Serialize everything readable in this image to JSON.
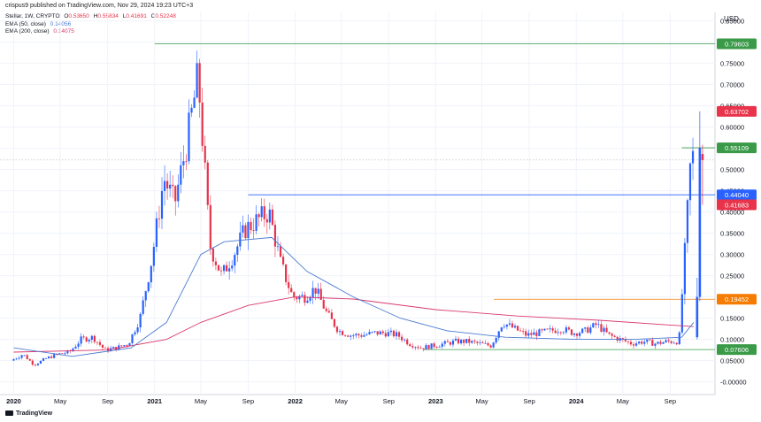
{
  "header": {
    "published": "crispus9 published on TradingView.com, Nov 29, 2024 19:23 UTC+3"
  },
  "legend": {
    "symbol": "Stellar, 1W, CRYPTO",
    "ohlc": [
      {
        "label": "O",
        "value": "0.53650"
      },
      {
        "label": "H",
        "value": "0.55834"
      },
      {
        "label": "L",
        "value": "0.41691"
      },
      {
        "label": "C",
        "value": "0.52248"
      }
    ],
    "ema50": {
      "label": "EMA (50, close)",
      "value": "0.14056",
      "color": "#4a7bd0"
    },
    "ema200": {
      "label": "EMA (200, close)",
      "value": "0.14075",
      "color": "#d9386e"
    }
  },
  "footer": {
    "logo_text": "TradingView"
  },
  "chart_data": {
    "type": "candlestick",
    "currency": "USD",
    "x_tick_labels": [
      "2020",
      "May",
      "Sep",
      "2021",
      "May",
      "Sep",
      "2022",
      "May",
      "Sep",
      "2023",
      "May",
      "Sep",
      "2024",
      "May",
      "Sep"
    ],
    "x_tick_dates": [
      "2020-01",
      "2020-05",
      "2020-09",
      "2021-01",
      "2021-05",
      "2021-09",
      "2022-01",
      "2022-05",
      "2022-09",
      "2023-01",
      "2023-05",
      "2023-09",
      "2024-01",
      "2024-05",
      "2024-09"
    ],
    "y_ticks": [
      -0.0,
      0.05,
      0.1,
      0.15,
      0.2,
      0.25,
      0.3,
      0.35,
      0.4,
      0.45,
      0.5,
      0.55,
      0.6,
      0.65,
      0.7,
      0.75,
      0.8,
      0.85
    ],
    "y_tick_labels": [
      "-0.00000",
      "0.05000",
      "0.10000",
      "0.15000",
      "0.20000",
      "0.25000",
      "0.30000",
      "0.35000",
      "0.40000",
      "0.45000",
      "0.50000",
      "0.55000",
      "0.60000",
      "0.65000",
      "0.70000",
      "0.75000",
      "0.80000",
      "0.85000"
    ],
    "ylim": [
      -0.03,
      0.87
    ],
    "up_color": "#2962ff",
    "down_color": "#e8334b",
    "price_tags": [
      {
        "value": 0.79603,
        "label": "0.79603",
        "color": "#3a9a48"
      },
      {
        "value": 0.63702,
        "label": "0.63702",
        "color": "#e8334b"
      },
      {
        "value": 0.55109,
        "label": "0.55109",
        "color": "#3a9a48"
      },
      {
        "value": 0.4404,
        "label": "0.44040",
        "color": "#2962ff"
      },
      {
        "value": 0.41683,
        "label": "0.41683",
        "color": "#e8334b"
      },
      {
        "value": 0.19452,
        "label": "0.19452",
        "color": "#f57c00"
      },
      {
        "value": 0.07606,
        "label": "0.07606",
        "color": "#3a9a48"
      }
    ],
    "horizontal_lines": [
      {
        "value": 0.79603,
        "from": "2021-01",
        "color": "#3a9a48"
      },
      {
        "value": 0.4404,
        "from": "2021-09",
        "color": "#2962ff"
      },
      {
        "value": 0.55109,
        "from": "2024-10",
        "color": "#3a9a48"
      },
      {
        "value": 0.19452,
        "from": "2023-06",
        "color": "#f57c00"
      },
      {
        "value": 0.07606,
        "from": "2022-12",
        "color": "#3a9a48"
      }
    ],
    "last_price": 0.52248,
    "price_path": [
      [
        "2020-01",
        0.05
      ],
      [
        "2020-02",
        0.065
      ],
      [
        "2020-03",
        0.04
      ],
      [
        "2020-04",
        0.055
      ],
      [
        "2020-05",
        0.065
      ],
      [
        "2020-06",
        0.07
      ],
      [
        "2020-07",
        0.1
      ],
      [
        "2020-08",
        0.105
      ],
      [
        "2020-09",
        0.075
      ],
      [
        "2020-10",
        0.08
      ],
      [
        "2020-11",
        0.09
      ],
      [
        "2020-12",
        0.15
      ],
      [
        "2021-01",
        0.29
      ],
      [
        "2021-02",
        0.48
      ],
      [
        "2021-03",
        0.42
      ],
      [
        "2021-04",
        0.56
      ],
      [
        "2021-05",
        0.72
      ],
      [
        "2021-06",
        0.32
      ],
      [
        "2021-07",
        0.25
      ],
      [
        "2021-08",
        0.3
      ],
      [
        "2021-09",
        0.36
      ],
      [
        "2021-10",
        0.38
      ],
      [
        "2021-11",
        0.4
      ],
      [
        "2021-12",
        0.28
      ],
      [
        "2022-01",
        0.2
      ],
      [
        "2022-02",
        0.2
      ],
      [
        "2022-03",
        0.22
      ],
      [
        "2022-04",
        0.16
      ],
      [
        "2022-05",
        0.12
      ],
      [
        "2022-06",
        0.11
      ],
      [
        "2022-07",
        0.11
      ],
      [
        "2022-08",
        0.115
      ],
      [
        "2022-09",
        0.115
      ],
      [
        "2022-10",
        0.11
      ],
      [
        "2022-11",
        0.09
      ],
      [
        "2022-12",
        0.08
      ],
      [
        "2023-01",
        0.085
      ],
      [
        "2023-02",
        0.09
      ],
      [
        "2023-03",
        0.095
      ],
      [
        "2023-04",
        0.095
      ],
      [
        "2023-05",
        0.09
      ],
      [
        "2023-06",
        0.085
      ],
      [
        "2023-07",
        0.14
      ],
      [
        "2023-08",
        0.125
      ],
      [
        "2023-09",
        0.11
      ],
      [
        "2023-10",
        0.115
      ],
      [
        "2023-11",
        0.12
      ],
      [
        "2023-12",
        0.125
      ],
      [
        "2024-01",
        0.115
      ],
      [
        "2024-02",
        0.12
      ],
      [
        "2024-03",
        0.135
      ],
      [
        "2024-04",
        0.11
      ],
      [
        "2024-05",
        0.1
      ],
      [
        "2024-06",
        0.09
      ],
      [
        "2024-07",
        0.095
      ],
      [
        "2024-08",
        0.09
      ],
      [
        "2024-09",
        0.095
      ],
      [
        "2024-10",
        0.095
      ],
      [
        "2024-11",
        0.53
      ]
    ],
    "ema50_path": [
      [
        "2020-01",
        0.08
      ],
      [
        "2020-06",
        0.06
      ],
      [
        "2020-11",
        0.08
      ],
      [
        "2021-02",
        0.14
      ],
      [
        "2021-05",
        0.3
      ],
      [
        "2021-07",
        0.33
      ],
      [
        "2021-11",
        0.34
      ],
      [
        "2022-02",
        0.26
      ],
      [
        "2022-06",
        0.2
      ],
      [
        "2022-10",
        0.15
      ],
      [
        "2023-02",
        0.12
      ],
      [
        "2023-07",
        0.105
      ],
      [
        "2024-01",
        0.1
      ],
      [
        "2024-06",
        0.1
      ],
      [
        "2024-10",
        0.105
      ],
      [
        "2024-11",
        0.14
      ]
    ],
    "ema200_path": [
      [
        "2020-01",
        0.07
      ],
      [
        "2020-09",
        0.075
      ],
      [
        "2021-02",
        0.1
      ],
      [
        "2021-05",
        0.14
      ],
      [
        "2021-09",
        0.18
      ],
      [
        "2022-01",
        0.2
      ],
      [
        "2022-06",
        0.195
      ],
      [
        "2023-01",
        0.17
      ],
      [
        "2023-08",
        0.155
      ],
      [
        "2024-03",
        0.145
      ],
      [
        "2024-11",
        0.13
      ]
    ]
  }
}
